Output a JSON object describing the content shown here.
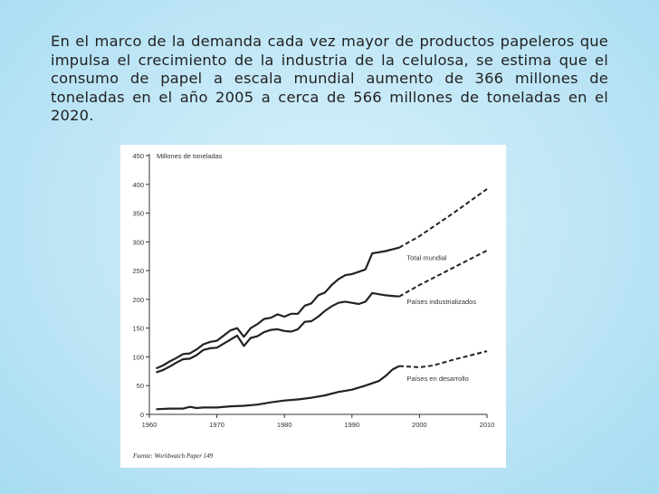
{
  "slide": {
    "paragraph": "En el marco de la demanda cada vez mayor de productos papeleros que impulsa el crecimiento de la industria de la celulosa, se estima que el consumo de papel a escala mundial aumento de 366 millones de toneladas en el año 2005 a cerca de 566 millones de toneladas en el 2020."
  },
  "chart_data": {
    "type": "line",
    "ylabel": "Millones de toneladas",
    "xlabel": "",
    "xlim": [
      1960,
      2010
    ],
    "ylim": [
      0,
      450
    ],
    "xticks": [
      "1960",
      "1970",
      "1980",
      "1990",
      "2000",
      "2010"
    ],
    "yticks": [
      "0",
      "50",
      "100",
      "150",
      "200",
      "250",
      "300",
      "350",
      "400",
      "450"
    ],
    "grid": false,
    "source": "Fuente: Worldwatch Paper 149",
    "series": [
      {
        "name": "Total mundial",
        "x": [
          1961,
          1962,
          1963,
          1964,
          1965,
          1966,
          1967,
          1968,
          1969,
          1970,
          1971,
          1972,
          1973,
          1974,
          1975,
          1976,
          1977,
          1978,
          1979,
          1980,
          1981,
          1982,
          1983,
          1984,
          1985,
          1986,
          1987,
          1988,
          1989,
          1990,
          1991,
          1992,
          1993,
          1994,
          1995,
          1996,
          1997
        ],
        "y": [
          80,
          85,
          92,
          98,
          105,
          106,
          113,
          122,
          126,
          128,
          137,
          146,
          150,
          135,
          150,
          157,
          166,
          168,
          174,
          170,
          175,
          175,
          189,
          193,
          207,
          212,
          225,
          235,
          242,
          244,
          248,
          252,
          280,
          282,
          284,
          287,
          290
        ],
        "projection": {
          "x": [
            1997,
            2000,
            2005,
            2010
          ],
          "y": [
            290,
            310,
            350,
            392
          ]
        }
      },
      {
        "name": "Países industrializados",
        "x": [
          1961,
          1962,
          1963,
          1964,
          1965,
          1966,
          1967,
          1968,
          1969,
          1970,
          1971,
          1972,
          1973,
          1974,
          1975,
          1976,
          1977,
          1978,
          1979,
          1980,
          1981,
          1982,
          1983,
          1984,
          1985,
          1986,
          1987,
          1988,
          1989,
          1990,
          1991,
          1992,
          1993,
          1994,
          1995,
          1996,
          1997
        ],
        "y": [
          73,
          77,
          83,
          90,
          96,
          97,
          103,
          112,
          115,
          116,
          123,
          130,
          137,
          119,
          133,
          136,
          143,
          147,
          148,
          145,
          144,
          148,
          161,
          162,
          170,
          180,
          188,
          194,
          196,
          194,
          192,
          196,
          211,
          209,
          207,
          206,
          205
        ],
        "projection": {
          "x": [
            1997,
            2000,
            2005,
            2010
          ],
          "y": [
            205,
            225,
            255,
            285
          ]
        }
      },
      {
        "name": "Países en desarrollo",
        "x": [
          1961,
          1963,
          1965,
          1966,
          1967,
          1968,
          1970,
          1972,
          1974,
          1976,
          1978,
          1980,
          1982,
          1984,
          1986,
          1988,
          1990,
          1992,
          1994,
          1995,
          1996,
          1997
        ],
        "y": [
          9,
          10,
          10,
          13,
          11,
          12,
          12,
          14,
          15,
          17,
          21,
          24,
          26,
          29,
          33,
          39,
          43,
          50,
          58,
          67,
          78,
          84
        ],
        "projection": {
          "x": [
            1997,
            2000,
            2002,
            2005,
            2010
          ],
          "y": [
            84,
            82,
            85,
            95,
            110
          ]
        }
      }
    ]
  }
}
